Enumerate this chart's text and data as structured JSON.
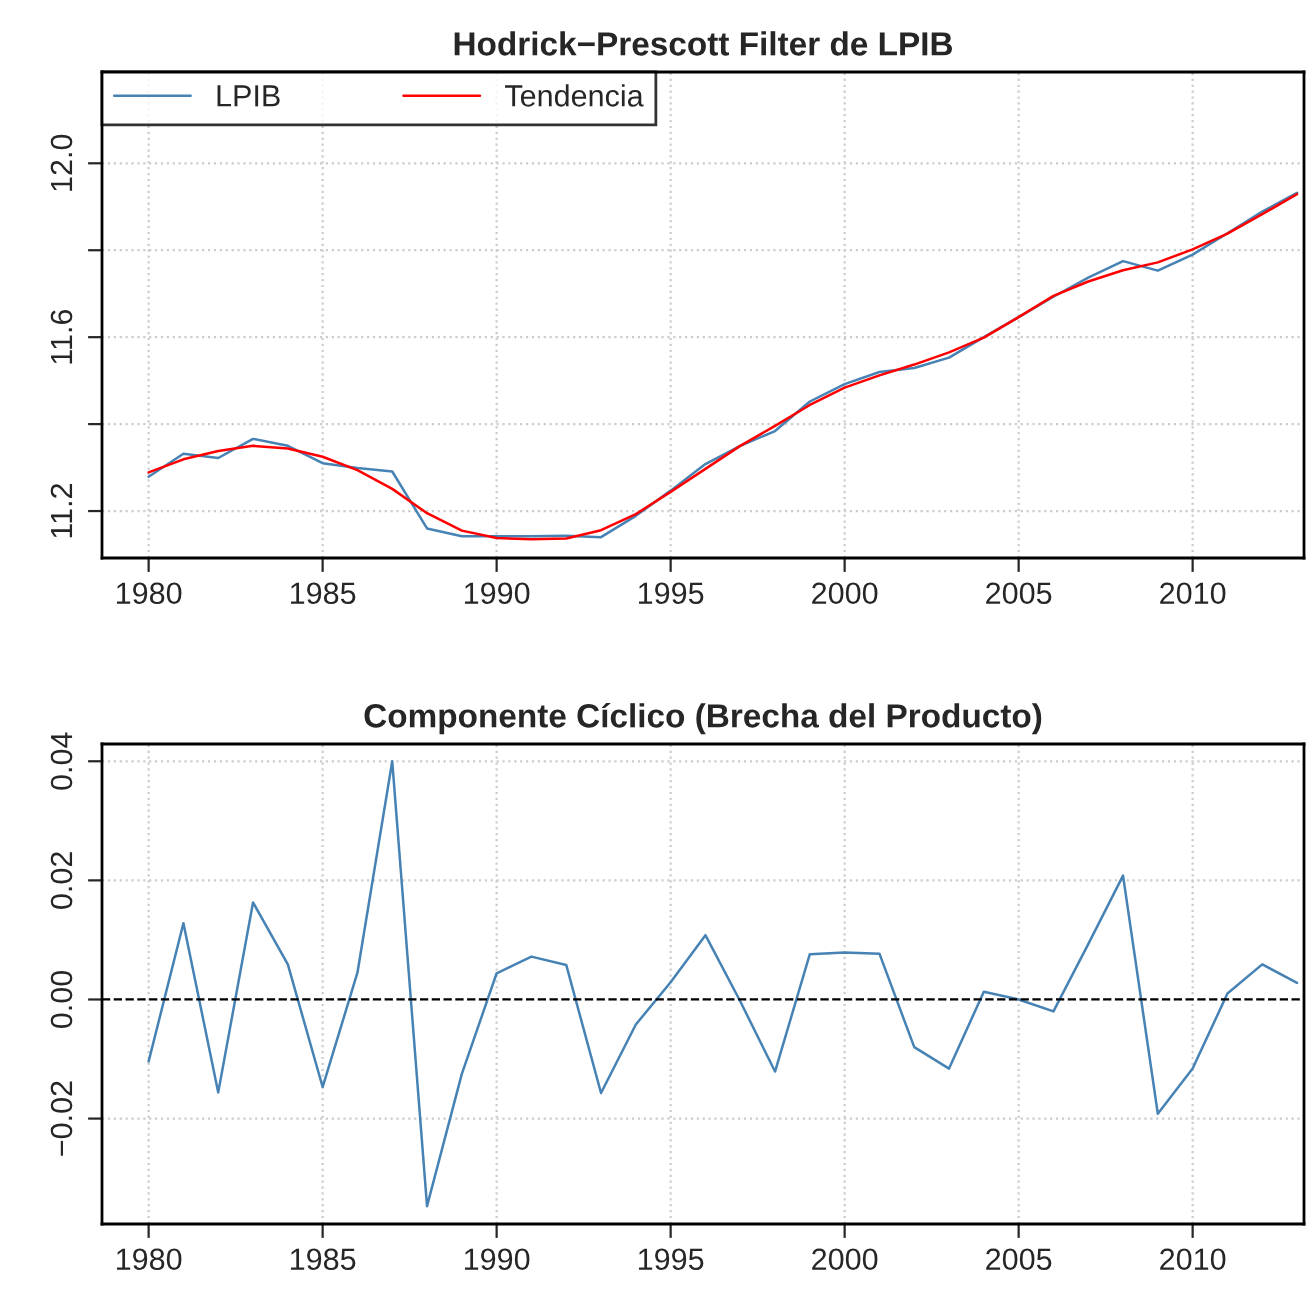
{
  "chart_data": [
    {
      "type": "line",
      "title": "Hodrick−Prescott Filter de LPIB",
      "x": [
        1980,
        1981,
        1982,
        1983,
        1984,
        1985,
        1986,
        1987,
        1988,
        1989,
        1990,
        1991,
        1992,
        1993,
        1994,
        1995,
        1996,
        1997,
        1998,
        1999,
        2000,
        2001,
        2002,
        2003,
        2004,
        2005,
        2006,
        2007,
        2008,
        2009,
        2010,
        2011,
        2012,
        2013
      ],
      "series": [
        {
          "name": "LPIB",
          "color": "#4682b4",
          "values": [
            11.279,
            11.332,
            11.322,
            11.366,
            11.35,
            11.31,
            11.299,
            11.291,
            11.16,
            11.142,
            11.142,
            11.142,
            11.143,
            11.14,
            11.189,
            11.247,
            11.308,
            11.35,
            11.384,
            11.452,
            11.492,
            11.52,
            11.529,
            11.553,
            11.6,
            11.646,
            11.693,
            11.737,
            11.775,
            11.753,
            11.79,
            11.839,
            11.889,
            11.932
          ]
        },
        {
          "name": "Tendencia",
          "color": "#ff0000",
          "values": [
            11.289,
            11.319,
            11.338,
            11.35,
            11.344,
            11.325,
            11.294,
            11.251,
            11.195,
            11.155,
            11.138,
            11.135,
            11.137,
            11.156,
            11.193,
            11.244,
            11.297,
            11.35,
            11.396,
            11.444,
            11.484,
            11.512,
            11.537,
            11.565,
            11.599,
            11.646,
            11.695,
            11.728,
            11.754,
            11.772,
            11.802,
            11.838,
            11.883,
            11.929
          ]
        }
      ],
      "xlim": [
        1978.66,
        2013.2
      ],
      "ylim": [
        11.092,
        12.21
      ],
      "xticks": [
        1980,
        1985,
        1990,
        1995,
        2000,
        2005,
        2010
      ],
      "yticks": [
        11.2,
        {
          "value": 11.4,
          "label": null
        },
        11.6,
        {
          "value": 11.8,
          "label": null
        },
        {
          "value": 12.0,
          "label": "12.0"
        }
      ],
      "grid": true,
      "legend": "top left",
      "line_style": "solid",
      "marker": "none"
    },
    {
      "type": "line",
      "title": "Componente Cíclico (Brecha del Producto)",
      "x": [
        1980,
        1981,
        1982,
        1983,
        1984,
        1985,
        1986,
        1987,
        1988,
        1989,
        1990,
        1991,
        1992,
        1993,
        1994,
        1995,
        1996,
        1997,
        1998,
        1999,
        2000,
        2001,
        2002,
        2003,
        2004,
        2005,
        2006,
        2007,
        2008,
        2009,
        2010,
        2011,
        2012,
        2013
      ],
      "series": [
        {
          "color": "#4682b4",
          "values": [
            -0.0104,
            0.0128,
            -0.0156,
            0.0163,
            0.0059,
            -0.0147,
            0.0045,
            0.04,
            -0.0347,
            -0.0125,
            0.0044,
            0.0072,
            0.0058,
            -0.0157,
            -0.0042,
            0.0029,
            0.0108,
            -0.0003,
            -0.0121,
            0.0076,
            0.0079,
            0.0077,
            -0.008,
            -0.0116,
            0.0013,
            0.0,
            -0.002,
            0.0093,
            0.0208,
            -0.0192,
            -0.0116,
            0.001,
            0.0059,
            0.0028
          ]
        }
      ],
      "xlim": [
        1978.66,
        2013.2
      ],
      "ylim": [
        -0.0377,
        0.0429
      ],
      "xticks": [
        1980,
        1985,
        1990,
        1995,
        2000,
        2005,
        2010
      ],
      "yticks": [
        {
          "value": -0.02,
          "label": "−0.02"
        },
        {
          "value": 0.0,
          "label": "0.00"
        },
        {
          "value": 0.02,
          "label": "0.02"
        },
        {
          "value": 0.04,
          "label": "0.04"
        }
      ],
      "ref_lines": [
        {
          "axis": "y",
          "value": 0,
          "color": "#000000",
          "line_style": "dashed"
        }
      ],
      "grid": true,
      "line_style": "solid",
      "marker": "none"
    }
  ]
}
